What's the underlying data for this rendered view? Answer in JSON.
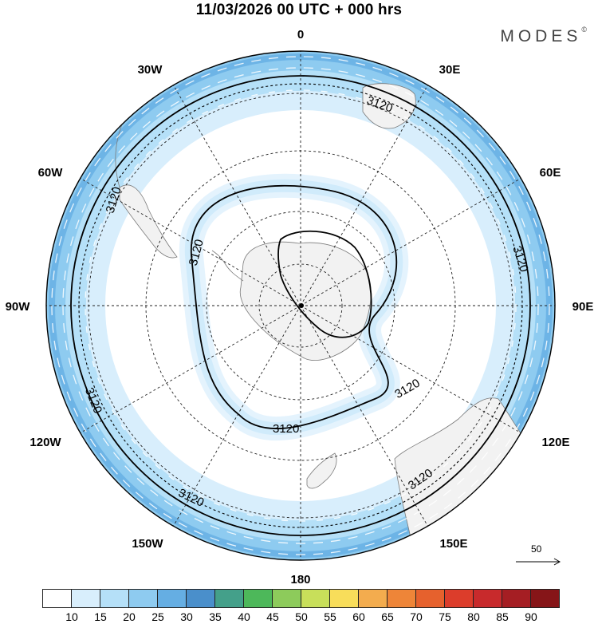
{
  "header": {
    "title": "11/03/2026  00 UTC  + 000 hrs"
  },
  "brand": {
    "name": "MODES",
    "mark": "©"
  },
  "map": {
    "projection": "south-polar-stereographic",
    "longitude_labels": [
      "0",
      "30E",
      "60E",
      "90E",
      "120E",
      "150E",
      "180",
      "150W",
      "120W",
      "90W",
      "60W",
      "30W"
    ],
    "contour_label": "3120",
    "colors": {
      "ocean": "#ffffff",
      "land": "#f2f2f2",
      "coast": "#7a7a7a",
      "contour": "#000000"
    }
  },
  "wind_reference": {
    "value": "50"
  },
  "colorbar": {
    "tick_labels": [
      "10",
      "15",
      "20",
      "25",
      "30",
      "35",
      "40",
      "45",
      "50",
      "55",
      "60",
      "65",
      "70",
      "75",
      "80",
      "85",
      "90"
    ],
    "bin_colors": [
      "#ffffff",
      "#d8eefc",
      "#b5e0f8",
      "#8ecbf0",
      "#65aee3",
      "#4a8fcb",
      "#44a08a",
      "#4db85a",
      "#8dcb5b",
      "#c8df5a",
      "#f8dd5a",
      "#f3ac4e",
      "#ee8538",
      "#e6612d",
      "#dc3d2b",
      "#c82a2c",
      "#a51e23",
      "#861518"
    ]
  }
}
